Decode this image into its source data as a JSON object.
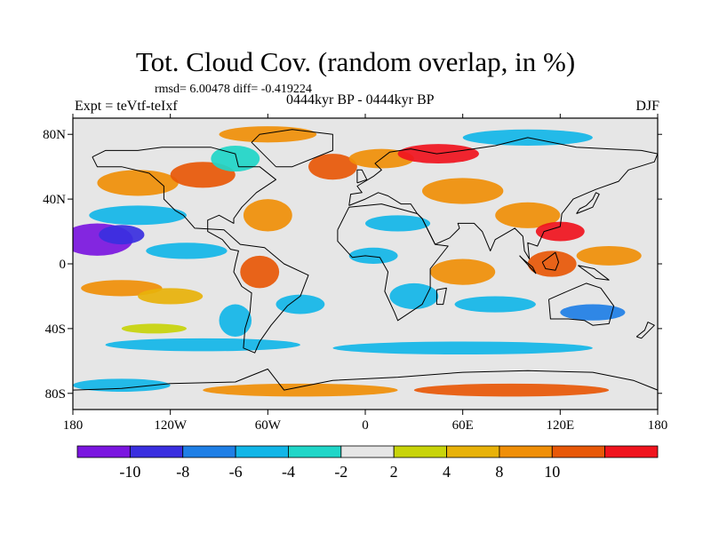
{
  "header": {
    "title": "Tot. Cloud Cov. (random overlap, in %)",
    "stats": "rmsd= 6.00478 diff= -0.419224",
    "experiment": "Expt = teVtf-teIxf",
    "period": "0444kyr BP - 0444kyr BP",
    "season": "DJF"
  },
  "map": {
    "projection": "cylindrical equidistant",
    "lon_range": [
      -180,
      180
    ],
    "lat_range": [
      -90,
      90
    ],
    "x_ticks": [
      {
        "value": -180,
        "label": "180"
      },
      {
        "value": -120,
        "label": "120W"
      },
      {
        "value": -60,
        "label": "60W"
      },
      {
        "value": 0,
        "label": "0"
      },
      {
        "value": 60,
        "label": "60E"
      },
      {
        "value": 120,
        "label": "120E"
      },
      {
        "value": 180,
        "label": "180"
      }
    ],
    "y_ticks": [
      {
        "value": 80,
        "label": "80N"
      },
      {
        "value": 40,
        "label": "40N"
      },
      {
        "value": 0,
        "label": "0"
      },
      {
        "value": -40,
        "label": "40S"
      },
      {
        "value": -80,
        "label": "80S"
      }
    ],
    "neutral_color": "#e6e6e6"
  },
  "colorbar": {
    "colors": [
      "#7b16e0",
      "#3a2fe0",
      "#1f7fe6",
      "#12b6e8",
      "#20d6c8",
      "#e6e6e6",
      "#c8d40a",
      "#e8b20a",
      "#f08f08",
      "#e85808",
      "#f0141e"
    ],
    "labels": [
      {
        "boundary": 1,
        "label": "-10"
      },
      {
        "boundary": 2,
        "label": "-8"
      },
      {
        "boundary": 3,
        "label": "-6"
      },
      {
        "boundary": 4,
        "label": "-4"
      },
      {
        "boundary": 5,
        "label": "-2"
      },
      {
        "boundary": 6,
        "label": "2"
      },
      {
        "boundary": 7,
        "label": "4"
      },
      {
        "boundary": 8,
        "label": "8"
      },
      {
        "boundary": 9,
        "label": "10"
      }
    ]
  },
  "anomalies": [
    {
      "lon": -165,
      "lat": 15,
      "rx": 22,
      "ry": 10,
      "c": 0
    },
    {
      "lon": -150,
      "lat": 18,
      "rx": 14,
      "ry": 6,
      "c": 1
    },
    {
      "lon": -140,
      "lat": 30,
      "rx": 30,
      "ry": 6,
      "c": 3
    },
    {
      "lon": -110,
      "lat": 8,
      "rx": 25,
      "ry": 5,
      "c": 3
    },
    {
      "lon": -150,
      "lat": -15,
      "rx": 25,
      "ry": 5,
      "c": 8
    },
    {
      "lon": -120,
      "lat": -20,
      "rx": 20,
      "ry": 5,
      "c": 7
    },
    {
      "lon": -140,
      "lat": 50,
      "rx": 25,
      "ry": 8,
      "c": 8
    },
    {
      "lon": -100,
      "lat": 55,
      "rx": 20,
      "ry": 8,
      "c": 9
    },
    {
      "lon": -80,
      "lat": 65,
      "rx": 15,
      "ry": 8,
      "c": 4
    },
    {
      "lon": -60,
      "lat": 30,
      "rx": 15,
      "ry": 10,
      "c": 8
    },
    {
      "lon": -65,
      "lat": -5,
      "rx": 12,
      "ry": 10,
      "c": 9
    },
    {
      "lon": -80,
      "lat": -35,
      "rx": 10,
      "ry": 10,
      "c": 3
    },
    {
      "lon": -40,
      "lat": -25,
      "rx": 15,
      "ry": 6,
      "c": 3
    },
    {
      "lon": -20,
      "lat": 60,
      "rx": 15,
      "ry": 8,
      "c": 9
    },
    {
      "lon": 10,
      "lat": 65,
      "rx": 20,
      "ry": 6,
      "c": 8
    },
    {
      "lon": 45,
      "lat": 68,
      "rx": 25,
      "ry": 6,
      "c": 10
    },
    {
      "lon": 60,
      "lat": 45,
      "rx": 25,
      "ry": 8,
      "c": 8
    },
    {
      "lon": 20,
      "lat": 25,
      "rx": 20,
      "ry": 5,
      "c": 3
    },
    {
      "lon": 5,
      "lat": 5,
      "rx": 15,
      "ry": 5,
      "c": 3
    },
    {
      "lon": 30,
      "lat": -20,
      "rx": 15,
      "ry": 8,
      "c": 3
    },
    {
      "lon": 60,
      "lat": -5,
      "rx": 20,
      "ry": 8,
      "c": 8
    },
    {
      "lon": 100,
      "lat": 30,
      "rx": 20,
      "ry": 8,
      "c": 8
    },
    {
      "lon": 120,
      "lat": 20,
      "rx": 15,
      "ry": 6,
      "c": 10
    },
    {
      "lon": 115,
      "lat": 0,
      "rx": 15,
      "ry": 8,
      "c": 9
    },
    {
      "lon": 150,
      "lat": 5,
      "rx": 20,
      "ry": 6,
      "c": 8
    },
    {
      "lon": 140,
      "lat": -30,
      "rx": 20,
      "ry": 5,
      "c": 2
    },
    {
      "lon": 80,
      "lat": -25,
      "rx": 25,
      "ry": 5,
      "c": 3
    },
    {
      "lon": -100,
      "lat": -50,
      "rx": 60,
      "ry": 4,
      "c": 3
    },
    {
      "lon": 60,
      "lat": -52,
      "rx": 80,
      "ry": 4,
      "c": 3
    },
    {
      "lon": -130,
      "lat": -40,
      "rx": 20,
      "ry": 3,
      "c": 6
    },
    {
      "lon": -40,
      "lat": -78,
      "rx": 60,
      "ry": 4,
      "c": 8
    },
    {
      "lon": 90,
      "lat": -78,
      "rx": 60,
      "ry": 4,
      "c": 9
    },
    {
      "lon": -150,
      "lat": -75,
      "rx": 30,
      "ry": 4,
      "c": 3
    },
    {
      "lon": -60,
      "lat": 80,
      "rx": 30,
      "ry": 5,
      "c": 8
    },
    {
      "lon": 100,
      "lat": 78,
      "rx": 40,
      "ry": 5,
      "c": 3
    }
  ],
  "coastlines": [
    [
      [
        -168,
        66
      ],
      [
        -160,
        70
      ],
      [
        -140,
        70
      ],
      [
        -125,
        72
      ],
      [
        -95,
        72
      ],
      [
        -80,
        68
      ],
      [
        -78,
        60
      ],
      [
        -65,
        60
      ],
      [
        -55,
        52
      ],
      [
        -67,
        44
      ],
      [
        -76,
        35
      ],
      [
        -81,
        28
      ],
      [
        -81,
        25
      ],
      [
        -90,
        30
      ],
      [
        -97,
        27
      ],
      [
        -97,
        20
      ],
      [
        -88,
        15
      ],
      [
        -83,
        9
      ],
      [
        -78,
        8
      ],
      [
        -80,
        0
      ],
      [
        -81,
        -5
      ],
      [
        -76,
        -14
      ],
      [
        -70,
        -18
      ],
      [
        -71,
        -30
      ],
      [
        -74,
        -40
      ],
      [
        -75,
        -52
      ],
      [
        -68,
        -55
      ],
      [
        -65,
        -48
      ],
      [
        -58,
        -38
      ],
      [
        -48,
        -26
      ],
      [
        -40,
        -20
      ],
      [
        -35,
        -7
      ],
      [
        -50,
        0
      ],
      [
        -62,
        10
      ],
      [
        -77,
        12
      ],
      [
        -87,
        21
      ],
      [
        -105,
        22
      ],
      [
        -112,
        30
      ],
      [
        -117,
        33
      ],
      [
        -124,
        40
      ],
      [
        -124,
        48
      ],
      [
        -133,
        56
      ],
      [
        -150,
        60
      ],
      [
        -165,
        60
      ],
      [
        -168,
        66
      ]
    ],
    [
      [
        -55,
        60
      ],
      [
        -45,
        60
      ],
      [
        -20,
        70
      ],
      [
        -20,
        80
      ],
      [
        -45,
        83
      ],
      [
        -65,
        80
      ],
      [
        -70,
        75
      ],
      [
        -55,
        60
      ]
    ],
    [
      [
        -10,
        36
      ],
      [
        -9,
        43
      ],
      [
        -2,
        44
      ],
      [
        -5,
        48
      ],
      [
        5,
        54
      ],
      [
        10,
        58
      ],
      [
        6,
        62
      ],
      [
        15,
        69
      ],
      [
        28,
        71
      ],
      [
        44,
        68
      ],
      [
        60,
        70
      ],
      [
        80,
        73
      ],
      [
        100,
        78
      ],
      [
        130,
        72
      ],
      [
        150,
        71
      ],
      [
        170,
        70
      ],
      [
        180,
        68
      ],
      [
        178,
        63
      ],
      [
        162,
        58
      ],
      [
        156,
        51
      ],
      [
        142,
        46
      ],
      [
        135,
        43
      ],
      [
        128,
        40
      ],
      [
        121,
        31
      ],
      [
        120,
        23
      ],
      [
        110,
        20
      ],
      [
        106,
        11
      ],
      [
        100,
        13
      ],
      [
        101,
        3
      ],
      [
        98,
        8
      ],
      [
        97,
        17
      ],
      [
        92,
        22
      ],
      [
        80,
        15
      ],
      [
        77,
        8
      ],
      [
        72,
        20
      ],
      [
        67,
        25
      ],
      [
        57,
        25
      ],
      [
        58,
        22
      ],
      [
        52,
        16
      ],
      [
        43,
        12
      ],
      [
        35,
        28
      ],
      [
        32,
        31
      ],
      [
        28,
        37
      ],
      [
        22,
        37
      ],
      [
        14,
        42
      ],
      [
        8,
        44
      ],
      [
        0,
        40
      ],
      [
        -10,
        36
      ]
    ],
    [
      [
        -17,
        21
      ],
      [
        -10,
        35
      ],
      [
        10,
        37
      ],
      [
        32,
        31
      ],
      [
        35,
        28
      ],
      [
        43,
        12
      ],
      [
        51,
        11
      ],
      [
        40,
        -3
      ],
      [
        40,
        -15
      ],
      [
        35,
        -25
      ],
      [
        20,
        -35
      ],
      [
        18,
        -30
      ],
      [
        12,
        -17
      ],
      [
        14,
        -5
      ],
      [
        9,
        4
      ],
      [
        0,
        5
      ],
      [
        -8,
        4
      ],
      [
        -17,
        14
      ],
      [
        -17,
        21
      ]
    ],
    [
      [
        113,
        -22
      ],
      [
        114,
        -34
      ],
      [
        125,
        -34
      ],
      [
        135,
        -35
      ],
      [
        140,
        -38
      ],
      [
        150,
        -37
      ],
      [
        153,
        -26
      ],
      [
        145,
        -15
      ],
      [
        136,
        -12
      ],
      [
        129,
        -15
      ],
      [
        122,
        -18
      ],
      [
        113,
        -22
      ]
    ],
    [
      [
        -180,
        -78
      ],
      [
        -150,
        -77
      ],
      [
        -120,
        -74
      ],
      [
        -80,
        -73
      ],
      [
        -60,
        -65
      ],
      [
        -50,
        -78
      ],
      [
        -20,
        -72
      ],
      [
        20,
        -70
      ],
      [
        60,
        -67
      ],
      [
        100,
        -66
      ],
      [
        140,
        -67
      ],
      [
        165,
        -72
      ],
      [
        180,
        -78
      ]
    ],
    [
      [
        -5,
        50
      ],
      [
        -5,
        58
      ],
      [
        -2,
        58
      ],
      [
        1,
        52
      ],
      [
        -5,
        50
      ]
    ],
    [
      [
        130,
        31
      ],
      [
        132,
        34
      ],
      [
        136,
        36
      ],
      [
        140,
        40
      ],
      [
        142,
        44
      ],
      [
        144,
        43
      ],
      [
        140,
        35
      ],
      [
        135,
        33
      ],
      [
        130,
        31
      ]
    ],
    [
      [
        95,
        5
      ],
      [
        105,
        -6
      ],
      [
        103,
        -2
      ],
      [
        97,
        3
      ],
      [
        95,
        5
      ]
    ],
    [
      [
        109,
        1
      ],
      [
        111,
        -3
      ],
      [
        117,
        -4
      ],
      [
        119,
        1
      ],
      [
        117,
        7
      ],
      [
        109,
        1
      ]
    ],
    [
      [
        131,
        -1
      ],
      [
        141,
        -3
      ],
      [
        150,
        -10
      ],
      [
        142,
        -9
      ],
      [
        131,
        -1
      ]
    ],
    [
      [
        44,
        -25
      ],
      [
        48,
        -25
      ],
      [
        50,
        -15
      ],
      [
        44,
        -16
      ],
      [
        44,
        -25
      ]
    ],
    [
      [
        167,
        -45
      ],
      [
        172,
        -41
      ],
      [
        174,
        -36
      ],
      [
        178,
        -38
      ],
      [
        170,
        -46
      ],
      [
        167,
        -45
      ]
    ]
  ]
}
